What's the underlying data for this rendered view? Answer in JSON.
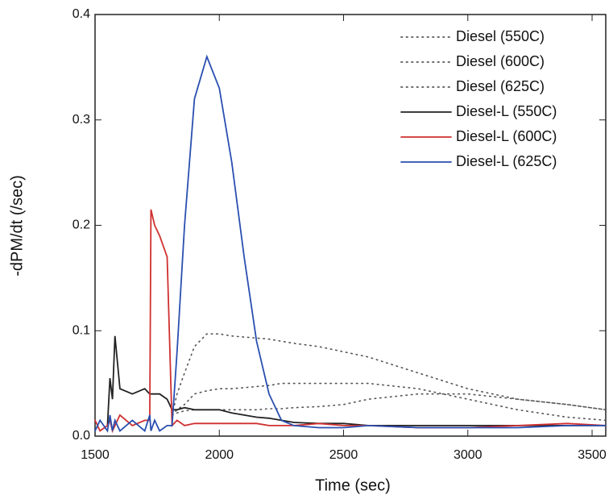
{
  "chart_data": {
    "type": "line",
    "x_label": "Time (sec)",
    "y_label": "-dPM/dt (/sec)",
    "x": [
      1500,
      1520,
      1550,
      1560,
      1570,
      1580,
      1600,
      1650,
      1700,
      1720,
      1725,
      1740,
      1760,
      1790,
      1810,
      1830,
      1860,
      1900,
      1950,
      2000,
      2050,
      2100,
      2150,
      2200,
      2250,
      2300,
      2400,
      2500,
      2600,
      2800,
      3000,
      3200,
      3400,
      3555
    ],
    "xlim": [
      1500,
      3555
    ],
    "xticks": [
      1500,
      2000,
      2500,
      3000,
      3500
    ],
    "ylim": [
      0,
      0.4
    ],
    "yticks": [
      {
        "value": 0,
        "label": "0.0"
      },
      0.1,
      0.2,
      0.3,
      0.4
    ],
    "legend": "top-right",
    "series": [
      {
        "name": "Diesel (550C)",
        "color": "#555555",
        "style": "dotted",
        "values": [
          null,
          null,
          null,
          null,
          null,
          null,
          null,
          null,
          null,
          null,
          null,
          null,
          null,
          null,
          0.02,
          0.022,
          0.024,
          0.025,
          0.025,
          0.025,
          0.025,
          0.025,
          0.025,
          0.026,
          0.026,
          0.027,
          0.028,
          0.03,
          0.035,
          0.04,
          0.04,
          0.035,
          0.03,
          0.025
        ]
      },
      {
        "name": "Diesel (600C)",
        "color": "#555555",
        "style": "dotted",
        "values": [
          null,
          null,
          null,
          null,
          null,
          null,
          null,
          null,
          null,
          null,
          null,
          null,
          null,
          null,
          0.02,
          0.025,
          0.03,
          0.04,
          0.043,
          0.045,
          0.045,
          0.046,
          0.047,
          0.048,
          0.05,
          0.05,
          0.05,
          0.05,
          0.05,
          0.045,
          0.035,
          0.025,
          0.018,
          0.015
        ]
      },
      {
        "name": "Diesel (625C)",
        "color": "#555555",
        "style": "dotted",
        "values": [
          null,
          null,
          null,
          null,
          null,
          null,
          null,
          null,
          null,
          null,
          null,
          null,
          null,
          null,
          0.02,
          0.04,
          0.06,
          0.085,
          0.097,
          0.097,
          0.095,
          0.094,
          0.093,
          0.092,
          0.09,
          0.088,
          0.085,
          0.08,
          0.075,
          0.06,
          0.045,
          0.035,
          0.03,
          0.025
        ]
      },
      {
        "name": "Diesel-L (550C)",
        "color": "#222222",
        "style": "solid",
        "values": [
          null,
          null,
          0.01,
          0.055,
          0.035,
          0.095,
          0.045,
          0.04,
          0.045,
          0.04,
          0.04,
          0.04,
          0.04,
          0.035,
          0.025,
          0.025,
          0.027,
          0.025,
          0.025,
          0.025,
          0.022,
          0.02,
          0.018,
          0.017,
          0.015,
          0.013,
          0.012,
          0.012,
          0.01,
          0.01,
          0.01,
          0.01,
          0.01,
          0.01
        ]
      },
      {
        "name": "Diesel-L (600C)",
        "color": "#d03030",
        "style": "solid",
        "values": [
          0.015,
          0.005,
          0.01,
          0.015,
          0.005,
          0.01,
          0.02,
          0.01,
          0.015,
          0.015,
          0.215,
          0.2,
          0.19,
          0.17,
          0.01,
          0.015,
          0.01,
          0.012,
          0.012,
          0.012,
          0.012,
          0.012,
          0.012,
          0.01,
          0.01,
          0.01,
          0.012,
          0.01,
          0.01,
          0.008,
          0.008,
          0.01,
          0.012,
          0.01
        ]
      },
      {
        "name": "Diesel-L (625C)",
        "color": "#2a4fb0",
        "style": "solid",
        "values": [
          0.005,
          0.015,
          0.005,
          0.02,
          0.005,
          0.015,
          0.005,
          0.015,
          0.005,
          0.02,
          0.005,
          0.015,
          0.005,
          0.01,
          0.01,
          0.08,
          0.2,
          0.32,
          0.36,
          0.33,
          0.26,
          0.17,
          0.09,
          0.04,
          0.015,
          0.01,
          0.008,
          0.008,
          0.01,
          0.008,
          0.008,
          0.008,
          0.01,
          0.01
        ]
      }
    ]
  }
}
